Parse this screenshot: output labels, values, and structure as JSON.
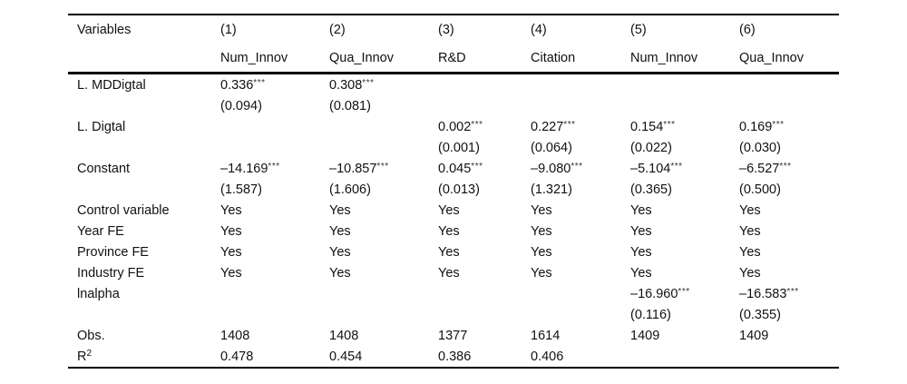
{
  "page": {
    "background_color": "#ffffff",
    "text_color": "#111111",
    "rule_color": "#000000"
  },
  "table": {
    "header": {
      "variables_label": "Variables",
      "column_numbers": [
        "(1)",
        "(2)",
        "(3)",
        "(4)",
        "(5)",
        "(6)"
      ],
      "column_names": [
        "Num_Innov",
        "Qua_Innov",
        "R&D",
        "Citation",
        "Num_Innov",
        "Qua_Innov"
      ]
    },
    "rows": [
      {
        "label": "L. MDDigtal",
        "cells": [
          "0.336***",
          "0.308***",
          "",
          "",
          "",
          ""
        ]
      },
      {
        "label": "",
        "cells": [
          "(0.094)",
          "(0.081)",
          "",
          "",
          "",
          ""
        ]
      },
      {
        "label": "L. Digtal",
        "cells": [
          "",
          "",
          "0.002***",
          "0.227***",
          "0.154***",
          "0.169***"
        ]
      },
      {
        "label": "",
        "cells": [
          "",
          "",
          "(0.001)",
          "(0.064)",
          "(0.022)",
          "(0.030)"
        ]
      },
      {
        "label": "Constant",
        "cells": [
          "–14.169***",
          "–10.857***",
          "0.045***",
          "–9.080***",
          "–5.104***",
          "–6.527***"
        ]
      },
      {
        "label": "",
        "cells": [
          "(1.587)",
          "(1.606)",
          "(0.013)",
          "(1.321)",
          "(0.365)",
          "(0.500)"
        ]
      },
      {
        "label": "Control variable",
        "cells": [
          "Yes",
          "Yes",
          "Yes",
          "Yes",
          "Yes",
          "Yes"
        ]
      },
      {
        "label": "Year FE",
        "cells": [
          "Yes",
          "Yes",
          "Yes",
          "Yes",
          "Yes",
          "Yes"
        ]
      },
      {
        "label": "Province FE",
        "cells": [
          "Yes",
          "Yes",
          "Yes",
          "Yes",
          "Yes",
          "Yes"
        ]
      },
      {
        "label": "Industry FE",
        "cells": [
          "Yes",
          "Yes",
          "Yes",
          "Yes",
          "Yes",
          "Yes"
        ]
      },
      {
        "label": "lnalpha",
        "cells": [
          "",
          "",
          "",
          "",
          "–16.960***",
          "–16.583***"
        ]
      },
      {
        "label": "",
        "cells": [
          "",
          "",
          "",
          "",
          "(0.116)",
          "(0.355)"
        ]
      },
      {
        "label": "Obs.",
        "cells": [
          "1408",
          "1408",
          "1377",
          "1614",
          "1409",
          "1409"
        ]
      },
      {
        "label_base": "R",
        "label_sup": "2",
        "cells": [
          "0.478",
          "0.454",
          "0.386",
          "0.406",
          "",
          ""
        ]
      }
    ]
  }
}
